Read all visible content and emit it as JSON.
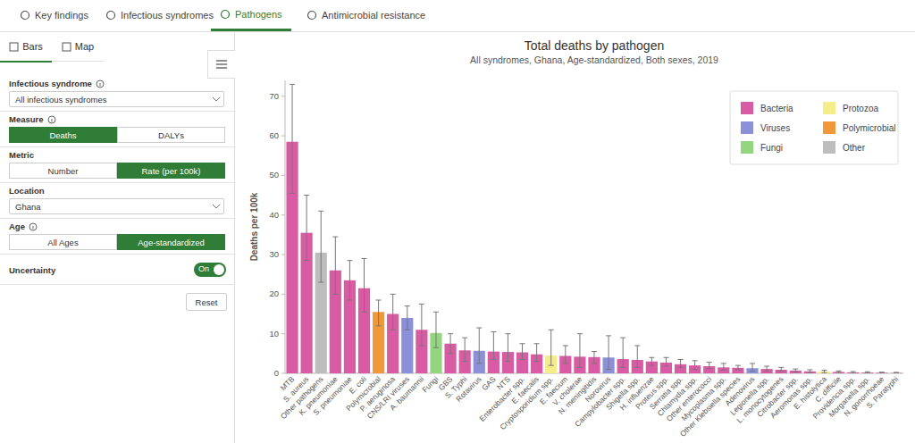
{
  "nav": {
    "tabs": [
      "Key findings",
      "Infectious syndromes",
      "Pathogens",
      "Antimicrobial resistance"
    ],
    "active": 2
  },
  "sidebar": {
    "view_tabs": [
      "Bars",
      "Map"
    ],
    "active_view": 0,
    "controls": [
      {
        "label": "Infectious syndrome",
        "kind": "dropdown",
        "value": "All infectious syndromes",
        "info": true
      },
      {
        "label": "Measure",
        "kind": "toggle",
        "options": [
          "Deaths",
          "DALYs"
        ],
        "selected": 0,
        "info": true
      },
      {
        "label": "Metric",
        "kind": "toggle",
        "options": [
          "Number",
          "Rate (per 100k)"
        ],
        "selected": 1,
        "info": false
      },
      {
        "label": "Location",
        "kind": "dropdown",
        "value": "Ghana",
        "info": false
      },
      {
        "label": "Age",
        "kind": "toggle",
        "options": [
          "All Ages",
          "Age-standardized"
        ],
        "selected": 1,
        "info": true
      },
      {
        "label": "Uncertainty",
        "kind": "switch",
        "value": "On",
        "info": false
      }
    ],
    "reset": "Reset"
  },
  "chart_data": {
    "type": "bar",
    "title": "Total deaths by pathogen",
    "subtitle": "All syndromes, Ghana, Age-standardized, Both sexes, 2019",
    "y_label": "Deaths per 100k",
    "categories": [
      "MTB",
      "S. aureus",
      "Other pathogens",
      "K. pneumoniae",
      "S. pneumoniae",
      "E. coli",
      "Polymicrobial",
      "P. aeruginosa",
      "CNS/LRI viruses",
      "A. baumannii",
      "Fungi",
      "GBS",
      "S. Typhi",
      "Rotavirus",
      "GAS",
      "NTS",
      "Enterobacter spp.",
      "E. faecalis",
      "Cryptosporidium spp.",
      "E. faecium",
      "V. cholerae",
      "N. meningitidis",
      "Norovirus",
      "Campylobacter spp.",
      "Shigella spp.",
      "H. influenzae",
      "Proteus spp.",
      "Serratia spp.",
      "Chlamydia spp.",
      "Other enterococci",
      "Mycoplasma spp.",
      "Other Klebsiella species",
      "Adenovirus",
      "Legionella spp.",
      "L. monocytogenes",
      "Citrobacter spp.",
      "Aeromonas spp.",
      "E. histolytica",
      "C. difficile",
      "Providencia spp.",
      "Morganella spp.",
      "N. gonorrhoeae",
      "S. Paratyphi"
    ],
    "values": [
      58.5,
      35.5,
      30.5,
      26,
      23.5,
      21.5,
      15.5,
      15,
      14,
      11,
      10.2,
      7.5,
      5.8,
      5.7,
      5.5,
      5.4,
      5.3,
      4.8,
      4.5,
      4.4,
      4.2,
      4.1,
      4,
      3.6,
      3.4,
      3,
      2.7,
      2.3,
      2,
      1.8,
      1.5,
      1.4,
      1.3,
      1.1,
      0.9,
      0.7,
      0.5,
      0.45,
      0.35,
      0.25,
      0.2,
      0.15,
      0.1
    ],
    "error_low": [
      45.5,
      28.5,
      23,
      20,
      18.5,
      15.5,
      12,
      11,
      11,
      7,
      6.5,
      5,
      3,
      2.5,
      3.5,
      3,
      3.5,
      3,
      2,
      2.5,
      1.5,
      2.5,
      1,
      1.5,
      1.5,
      2,
      1.8,
      1.5,
      1,
      1.2,
      0.8,
      0.9,
      0.5,
      0.6,
      0.5,
      0.4,
      0.2,
      0.2,
      0.2,
      0.1,
      0.1,
      0.05,
      0.05
    ],
    "error_high": [
      73,
      45,
      41,
      34.5,
      28.5,
      29,
      18.5,
      20,
      17,
      17.5,
      15.5,
      10,
      9,
      11.5,
      10.5,
      10,
      7.5,
      7.5,
      11,
      7,
      10,
      5.5,
      9.5,
      9,
      7,
      4,
      4,
      3.5,
      3.2,
      2.8,
      2.5,
      2,
      2.5,
      1.8,
      1.5,
      1.1,
      0.9,
      0.8,
      0.6,
      0.45,
      0.4,
      0.3,
      0.25
    ],
    "colors": [
      "#d95ba3",
      "#d95ba3",
      "#bdbdbd",
      "#d95ba3",
      "#d95ba3",
      "#d95ba3",
      "#f0983a",
      "#d95ba3",
      "#8c90d8",
      "#d95ba3",
      "#93d67f",
      "#d95ba3",
      "#d95ba3",
      "#8c90d8",
      "#d95ba3",
      "#d95ba3",
      "#d95ba3",
      "#d95ba3",
      "#f5ec8a",
      "#d95ba3",
      "#d95ba3",
      "#d95ba3",
      "#8c90d8",
      "#d95ba3",
      "#d95ba3",
      "#d95ba3",
      "#d95ba3",
      "#d95ba3",
      "#d95ba3",
      "#d95ba3",
      "#d95ba3",
      "#d95ba3",
      "#8c90d8",
      "#d95ba3",
      "#d95ba3",
      "#d95ba3",
      "#d95ba3",
      "#f5ec8a",
      "#d95ba3",
      "#d95ba3",
      "#d95ba3",
      "#d95ba3",
      "#d95ba3"
    ],
    "ylim": [
      0,
      74
    ],
    "yticks": [
      0,
      10,
      20,
      30,
      40,
      50,
      60,
      70
    ],
    "grid": false,
    "legend": "top-right",
    "legend_items": [
      {
        "name": "Bacteria",
        "color": "#d95ba3"
      },
      {
        "name": "Protozoa",
        "color": "#f5ec8a"
      },
      {
        "name": "Viruses",
        "color": "#8c90d8"
      },
      {
        "name": "Polymicrobial",
        "color": "#f0983a"
      },
      {
        "name": "Fungi",
        "color": "#93d67f"
      },
      {
        "name": "Other",
        "color": "#bdbdbd"
      }
    ]
  }
}
